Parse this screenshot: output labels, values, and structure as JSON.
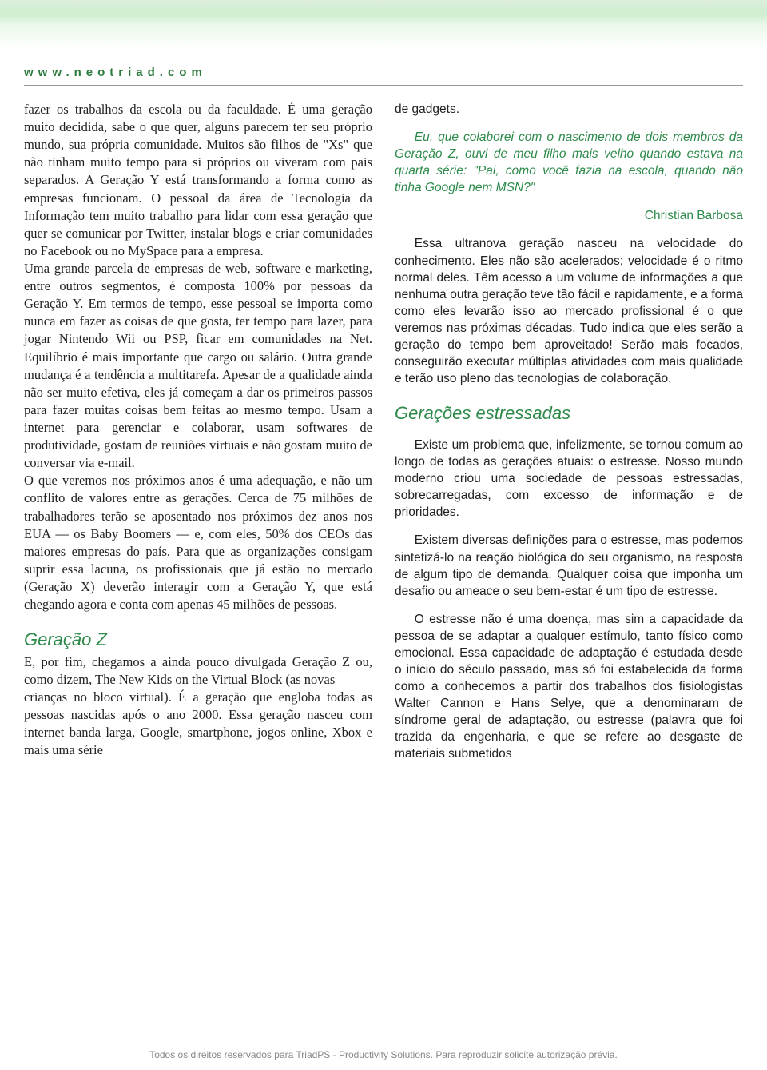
{
  "header": {
    "url": "www.neotriad.com"
  },
  "left": {
    "p1": "fazer os trabalhos da escola ou da faculdade. É uma geração muito decidida, sabe o que quer, alguns parecem ter seu próprio mundo, sua própria comunidade. Muitos são filhos de \"Xs\" que não tinham muito tempo para si próprios ou viveram com pais separados. A Geração Y está transformando a forma como as empresas funcionam. O pessoal da área de Tecnologia da Informação tem muito trabalho para lidar com essa geração que quer se comunicar por Twitter, instalar blogs e criar comunidades no Facebook ou no MySpace para a empresa.",
    "p2": "Uma grande parcela de empresas de web, software e marketing, entre outros segmentos, é composta 100% por pessoas da Geração Y. Em termos de tempo, esse pessoal se importa como nunca em fazer as coisas de que gosta, ter tempo para lazer, para jogar Nintendo Wii ou PSP, ficar em comunidades na Net. Equilíbrio é mais importante que cargo ou salário. Outra grande mudança é a tendência a multitarefa. Apesar de a qualidade ainda não ser muito efetiva, eles já começam a dar os primeiros passos para fazer muitas coisas bem feitas ao mesmo tempo. Usam a internet para gerenciar e colaborar, usam softwares de produtividade, gostam de reuniões virtuais e não gostam muito de conversar via e-mail.",
    "p3": "O que veremos nos próximos anos é uma adequação, e não um conflito de valores entre as gerações. Cerca de 75 milhões de trabalhadores terão se aposentado nos próximos dez anos nos EUA — os Baby Boomers — e, com eles, 50% dos CEOs das maiores empresas do país. Para que as organizações consigam suprir essa lacuna, os profissionais que já estão no mercado (Geração X) deverão interagir com a Geração Y, que está chegando agora e conta com apenas 45 milhões de pessoas.",
    "h2": "Geração Z",
    "p4": "E, por fim, chegamos a ainda pouco divulgada Geração Z ou, como dizem, The New Kids on the Virtual Block (as novas",
    "p5": "crianças no bloco virtual). É a geração que engloba todas as pessoas nascidas após o ano 2000. Essa geração nasceu com internet banda larga, Google, smartphone, jogos online, Xbox e mais uma série"
  },
  "right": {
    "p1": "de gadgets.",
    "quote": "Eu, que colaborei com o nascimento de dois membros da Geração Z, ouvi de meu filho mais velho quando estava na quarta série: \"Pai, como você fazia na escola, quando não tinha Google nem MSN?\"",
    "author": "Christian Barbosa",
    "p2": "Essa ultranova geração nasceu na velocidade do conhecimento. Eles não são acelerados; velocidade é o ritmo normal deles. Têm acesso a um volume de informações a que nenhuma outra geração teve tão fácil e rapidamente, e a forma como eles levarão isso ao mercado profissional é o que veremos nas próximas décadas. Tudo indica que eles serão a geração do tempo bem aproveitado! Serão mais focados, conseguirão executar múltiplas atividades com mais qualidade e terão uso pleno das tecnologias de colaboração.",
    "h2": "Gerações estressadas",
    "p3": "Existe um problema que, infelizmente, se tornou comum ao longo de todas as gerações atuais: o estresse. Nosso mundo moderno criou uma sociedade de pessoas estressadas, sobrecarregadas, com excesso de informação e de prioridades.",
    "p4": "Existem diversas definições para o estresse, mas podemos sintetizá-lo na reação biológica do seu organismo, na resposta de algum tipo de demanda. Qualquer coisa que imponha um desafio ou ameace o seu bem-estar é um tipo de estresse.",
    "p5": "O estresse não é uma doença, mas sim a capacidade da pessoa de se adaptar a qualquer estímulo, tanto físico como emocional. Essa capacidade de adaptação é estudada desde o início do século passado, mas só foi estabelecida da forma como a conhecemos a partir dos trabalhos dos fisiologistas Walter Cannon e Hans Selye, que a denominaram de síndrome geral de adaptação, ou estresse (palavra que foi trazida da engenharia, e que se refere ao desgaste de materiais submetidos"
  },
  "footer": {
    "text": "Todos os direitos reservados para TriadPS - Productivity Solutions. Para reproduzir solicite autorização prévia."
  },
  "colors": {
    "green": "#2d8a4a",
    "header_green": "#2d7a3d",
    "text": "#222222",
    "footer": "#888888",
    "divider": "#999999"
  }
}
